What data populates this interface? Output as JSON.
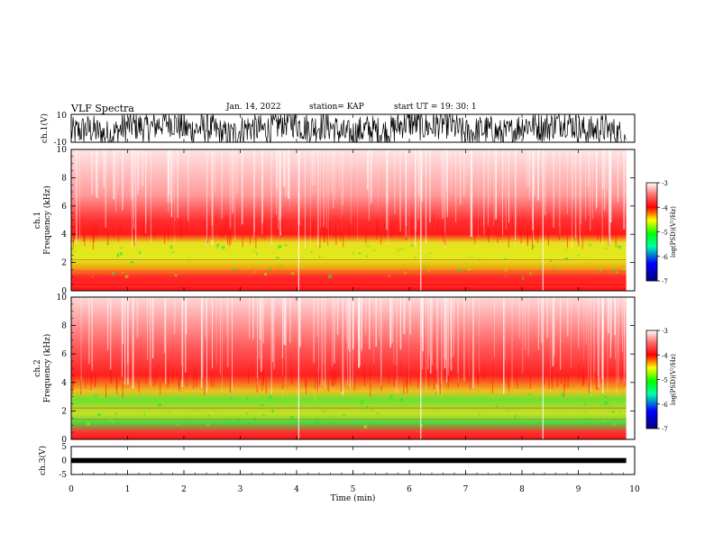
{
  "header": {
    "title": "VLF Spectra",
    "date": "Jan. 14, 2022",
    "station": "station= KAP",
    "start_ut": "start  UT =   19: 30: 1"
  },
  "chart_data": [
    {
      "type": "line",
      "name": "ch1-waveform",
      "ylabel": "ch.1(V)",
      "ylim": [
        -10,
        10
      ],
      "y_ticks": [
        "10",
        "-10"
      ],
      "xlim": [
        0,
        10
      ]
    },
    {
      "type": "heatmap",
      "name": "ch1-spectrogram",
      "ylabel": "ch.1\nFrequency (kHz)",
      "ylim": [
        0,
        10
      ],
      "y_ticks": [
        "0",
        "2",
        "4",
        "6",
        "8",
        "10"
      ],
      "xlim": [
        0,
        10
      ],
      "data_end_min": 9.85,
      "colorbar": {
        "label": "log(PSD)(V²/Hz)",
        "range": [
          -7,
          -3
        ],
        "ticks": [
          "-3",
          "-4",
          "-5",
          "-6",
          "-7"
        ]
      }
    },
    {
      "type": "heatmap",
      "name": "ch2-spectrogram",
      "ylabel": "ch.2\nFrequency (kHz)",
      "ylim": [
        0,
        10
      ],
      "y_ticks": [
        "0",
        "2",
        "4",
        "6",
        "8",
        "10"
      ],
      "xlim": [
        0,
        10
      ],
      "data_end_min": 9.85,
      "colorbar": {
        "label": "log(PSD)(V²/Hz)",
        "range": [
          -7,
          -3
        ],
        "ticks": [
          "-3",
          "-4",
          "-5",
          "-6",
          "-7"
        ]
      }
    },
    {
      "type": "line",
      "name": "ch3-waveform",
      "ylabel": "ch.3(V)",
      "ylim": [
        -5,
        5
      ],
      "y_ticks": [
        "5",
        "0",
        "-5"
      ],
      "xlim": [
        0,
        10
      ],
      "xlabel": "Time (min)",
      "x_ticks": [
        "0",
        "1",
        "2",
        "3",
        "4",
        "5",
        "6",
        "7",
        "8",
        "9",
        "10"
      ]
    }
  ],
  "colors": {
    "axis": "#000000",
    "colormap": [
      "#00007f",
      "#0000ff",
      "#00ff00",
      "#ffff00",
      "#ff0000",
      "#ffffff"
    ]
  }
}
